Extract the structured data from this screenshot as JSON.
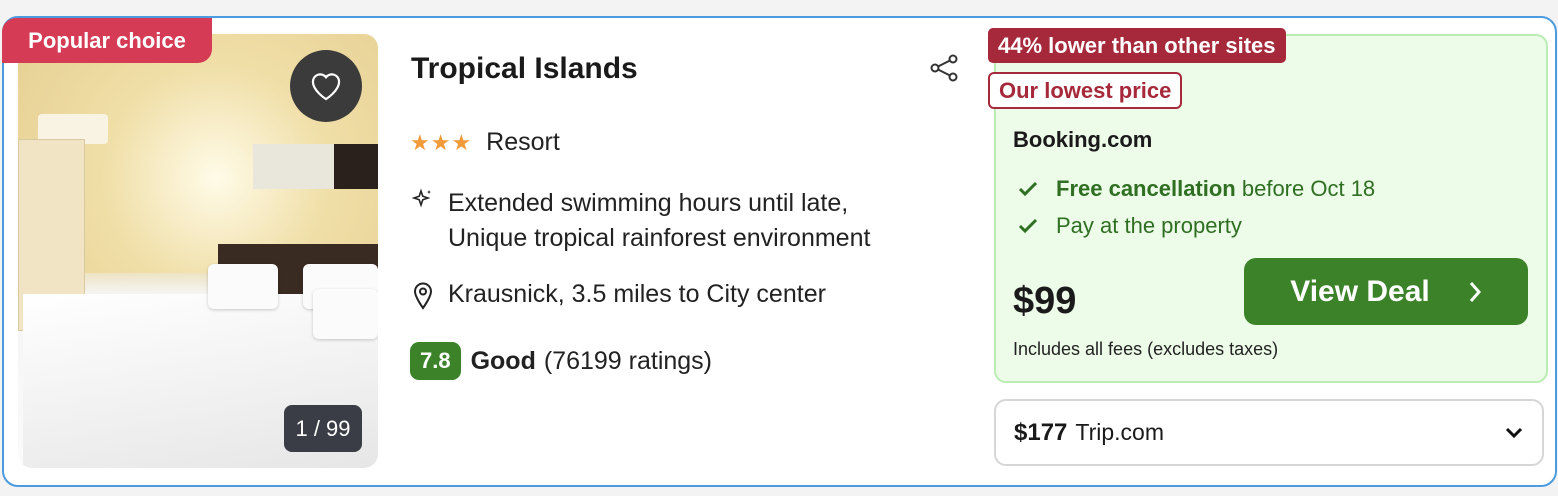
{
  "badge": "Popular choice",
  "photo": {
    "counter": "1 / 99"
  },
  "hotel": {
    "name": "Tropical Islands",
    "stars": 3,
    "stars_text": "★★★",
    "type": "Resort",
    "highlights": [
      "Extended swimming hours until late,",
      "Unique tropical rainforest environment"
    ],
    "location": "Krausnick, 3.5 miles to City center",
    "rating": {
      "score": "7.8",
      "label": "Good",
      "count": "(76199 ratings)"
    }
  },
  "deal": {
    "savings_badge": "44% lower than other sites",
    "lowest_badge": "Our lowest price",
    "provider": "Booking.com",
    "features": [
      {
        "bold": "Free cancellation",
        "text": " before Oct 18"
      },
      {
        "bold": "",
        "text": "Pay at the property"
      }
    ],
    "price": "$99",
    "button": "View Deal",
    "fees_note": "Includes all fees (excludes taxes)"
  },
  "alternative": {
    "price": "$177",
    "provider": "Trip.com"
  },
  "colors": {
    "accent_green": "#3b8229",
    "badge_red": "#a6293b",
    "popular_red": "#d63b55",
    "card_border": "#4a9be0",
    "star": "#f09a3a"
  }
}
